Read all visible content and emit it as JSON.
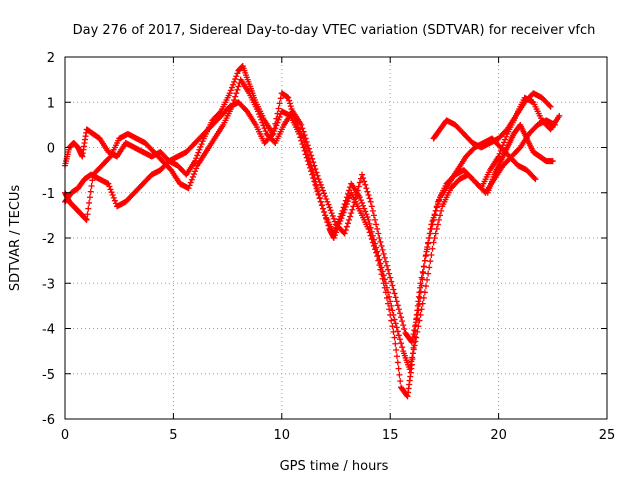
{
  "chart_data": {
    "type": "scatter",
    "title": "Day 276 of 2017, Sidereal Day-to-day VTEC variation (SDTVAR) for receiver vfch",
    "xlabel": "GPS time / hours",
    "ylabel": "SDTVAR / TECUs",
    "xlim": [
      0,
      25
    ],
    "ylim": [
      -6,
      2
    ],
    "xticks": [
      0,
      5,
      10,
      15,
      20,
      25
    ],
    "yticks": [
      -6,
      -5,
      -4,
      -3,
      -2,
      -1,
      0,
      1,
      2
    ],
    "xtick_labels": [
      "0",
      "5",
      "10",
      "15",
      "20",
      "25"
    ],
    "ytick_labels": [
      "-6",
      "-5",
      "-4",
      "-3",
      "-2",
      "-1",
      "0",
      "1",
      "2"
    ],
    "grid": true,
    "legend": "none",
    "marker": "plus",
    "color": "#ff0000",
    "series": [
      {
        "x": [
          0.0,
          0.2,
          0.4,
          0.6,
          0.8,
          1.0,
          1.3,
          1.6,
          2.0,
          2.4,
          2.8,
          3.2,
          3.6,
          4.0,
          4.4,
          4.8,
          5.2,
          5.6,
          6.0,
          6.4,
          6.8,
          7.2,
          7.6,
          8.0,
          8.2,
          8.5,
          8.8,
          9.2,
          9.6,
          10.0,
          10.3,
          10.6,
          11.0,
          11.4,
          11.8,
          12.2,
          12.4,
          12.8,
          13.2,
          13.6,
          14.0,
          14.4,
          14.8,
          15.2,
          15.5,
          15.8,
          16.0,
          16.2,
          16.4,
          16.8,
          17.2,
          17.6,
          18.0,
          18.4,
          18.8,
          19.2,
          19.6,
          20.0,
          20.4,
          20.8,
          21.2,
          21.6,
          22.0,
          22.4,
          22.8
        ],
        "y": [
          -0.4,
          0.0,
          0.1,
          0.0,
          -0.2,
          0.4,
          0.3,
          0.2,
          -0.1,
          -0.2,
          0.1,
          0.0,
          -0.1,
          -0.2,
          -0.1,
          -0.3,
          -0.4,
          -0.6,
          -0.3,
          0.2,
          0.6,
          0.8,
          1.2,
          1.7,
          1.8,
          1.4,
          1.0,
          0.6,
          0.3,
          1.2,
          1.1,
          0.6,
          0.2,
          -0.5,
          -1.2,
          -1.8,
          -2.0,
          -1.5,
          -1.0,
          -1.4,
          -1.8,
          -2.4,
          -3.2,
          -4.2,
          -5.3,
          -5.5,
          -4.8,
          -3.8,
          -3.0,
          -2.0,
          -1.2,
          -0.8,
          -0.6,
          -0.5,
          -0.7,
          -0.9,
          -0.5,
          -0.2,
          0.3,
          0.7,
          1.1,
          1.0,
          0.6,
          0.4,
          0.7
        ]
      },
      {
        "x": [
          0.0,
          0.3,
          0.6,
          0.9,
          1.2,
          1.6,
          2.0,
          2.4,
          2.8,
          3.2,
          3.6,
          4.0,
          4.4,
          4.8,
          5.2,
          5.6,
          6.0,
          6.4,
          6.8,
          7.2,
          7.6,
          8.0,
          8.4,
          8.8,
          9.2,
          9.6,
          10.0,
          10.4,
          10.8,
          11.2,
          11.6,
          12.0,
          12.4,
          12.8,
          13.2,
          13.6,
          14.0,
          14.4,
          14.8,
          15.2,
          15.6,
          15.9,
          16.2,
          16.6,
          17.0,
          17.4,
          17.8,
          18.2,
          18.6,
          19.0,
          19.4,
          19.8,
          20.2,
          20.6,
          21.0,
          21.4,
          21.8,
          22.2,
          22.6
        ],
        "y": [
          -1.2,
          -1.0,
          -0.9,
          -0.7,
          -0.6,
          -0.7,
          -0.8,
          -1.3,
          -1.2,
          -1.0,
          -0.8,
          -0.6,
          -0.5,
          -0.3,
          -0.2,
          -0.1,
          0.1,
          0.3,
          0.5,
          0.7,
          0.9,
          1.0,
          0.8,
          0.5,
          0.1,
          0.3,
          0.8,
          0.7,
          0.3,
          -0.3,
          -0.9,
          -1.5,
          -1.9,
          -1.4,
          -0.8,
          -1.1,
          -1.6,
          -2.3,
          -3.0,
          -3.8,
          -4.5,
          -4.9,
          -4.2,
          -3.2,
          -2.1,
          -1.3,
          -0.9,
          -0.7,
          -0.6,
          -0.8,
          -1.0,
          -0.7,
          -0.4,
          -0.2,
          0.0,
          0.3,
          0.5,
          0.6,
          0.5
        ]
      },
      {
        "x": [
          0.0,
          0.2,
          0.4,
          0.6,
          0.8,
          1.0,
          1.3,
          1.7,
          2.1,
          2.5,
          2.9,
          3.3,
          3.7,
          4.1,
          4.5,
          4.9,
          5.3,
          5.7,
          6.1,
          6.5,
          6.9,
          7.3,
          7.7,
          8.1,
          8.5,
          8.9,
          9.3,
          9.7,
          10.1,
          10.5,
          10.9,
          11.3,
          11.7,
          12.1,
          12.5,
          12.9,
          13.3,
          13.7,
          14.1,
          14.5,
          14.9,
          15.3,
          15.7,
          16.0,
          16.3,
          16.6,
          16.9,
          17.3,
          17.7,
          18.1,
          18.5,
          18.9,
          19.3,
          19.7,
          20.1,
          20.5,
          20.9,
          21.3,
          21.7
        ],
        "y": [
          -1.0,
          -1.2,
          -1.3,
          -1.4,
          -1.5,
          -1.6,
          -0.6,
          -0.4,
          -0.2,
          0.2,
          0.3,
          0.2,
          0.1,
          -0.1,
          -0.3,
          -0.5,
          -0.8,
          -0.9,
          -0.4,
          -0.1,
          0.2,
          0.5,
          0.9,
          1.5,
          1.2,
          0.8,
          0.3,
          0.1,
          0.5,
          0.8,
          0.5,
          -0.1,
          -0.7,
          -1.2,
          -1.7,
          -1.9,
          -1.3,
          -0.6,
          -1.2,
          -2.0,
          -2.7,
          -3.4,
          -4.1,
          -4.3,
          -3.6,
          -2.5,
          -1.7,
          -1.1,
          -0.8,
          -0.5,
          -0.2,
          0.0,
          0.1,
          0.2,
          0.0,
          -0.2,
          -0.4,
          -0.5,
          -0.7
        ]
      },
      {
        "x": [
          17.0,
          17.3,
          17.6,
          18.0,
          18.4,
          18.8,
          19.2,
          19.6,
          20.0,
          20.4,
          20.8,
          21.2,
          21.6,
          22.0,
          22.4
        ],
        "y": [
          0.2,
          0.4,
          0.6,
          0.5,
          0.3,
          0.1,
          0.0,
          0.1,
          0.2,
          0.4,
          0.7,
          1.0,
          1.2,
          1.1,
          0.9
        ]
      },
      {
        "x": [
          19.5,
          19.8,
          20.1,
          20.4,
          20.7,
          21.0,
          21.3,
          21.6,
          21.9,
          22.2,
          22.5
        ],
        "y": [
          -1.0,
          -0.6,
          -0.3,
          0.0,
          0.3,
          0.5,
          0.2,
          -0.1,
          -0.2,
          -0.3,
          -0.3
        ]
      }
    ]
  }
}
